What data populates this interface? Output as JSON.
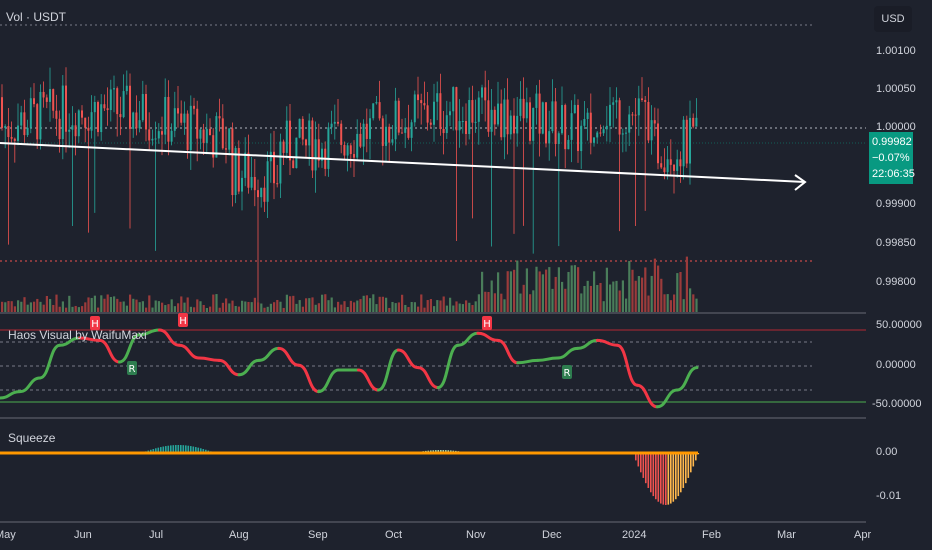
{
  "header": {
    "symbol_label": "Vol · USDT",
    "currency": "USD"
  },
  "price_axis": {
    "ticks": [
      "1.00100",
      "1.00050",
      "1.00000",
      "0.99900",
      "0.99850",
      "0.99800"
    ],
    "last_price": "0.99982",
    "change": "−0.07%",
    "countdown": "22:06:35"
  },
  "indicators": {
    "haos_title": "Haos Visual by WaifuMaxi",
    "haos_ticks": [
      "50.00000",
      "0.00000",
      "-50.00000"
    ],
    "haos_marks": [
      "H",
      "R",
      "H",
      "H",
      "R"
    ],
    "squeeze_title": "Squeeze",
    "squeeze_ticks": [
      "0.00",
      "-0.01"
    ]
  },
  "time_axis": [
    "May",
    "Jun",
    "Jul",
    "Aug",
    "Sep",
    "Oct",
    "Nov",
    "Dec",
    "2024",
    "Feb",
    "Mar",
    "Apr"
  ],
  "colors": {
    "up": "#26a69a",
    "down": "#ef5350",
    "bg": "#1e222d",
    "trendline": "#ffffff",
    "tag": "#089981"
  },
  "chart_data": {
    "type": "candlestick",
    "ylim": [
      0.99775,
      1.00135
    ],
    "trendline": [
      {
        "x": "May",
        "y": 0.9999
      },
      {
        "x": "Feb",
        "y": 0.9992
      }
    ],
    "haos_oscillator": [
      -40,
      -32,
      -15,
      26,
      35,
      32,
      5,
      39,
      45,
      26,
      10,
      7,
      -11,
      7,
      22,
      1,
      -32,
      -5,
      -5,
      -30,
      20,
      -2,
      -27,
      26,
      41,
      32,
      4,
      7,
      10,
      22,
      32,
      26,
      -24,
      -51,
      -30,
      -2
    ],
    "haos_levels": [
      45,
      -45
    ]
  }
}
